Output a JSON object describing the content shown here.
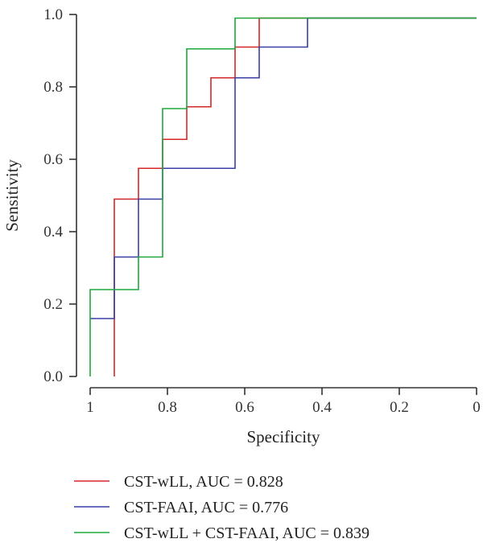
{
  "chart_data": {
    "type": "line",
    "xlabel": "Specificity",
    "ylabel": "Sensitivity",
    "x_reversed": true,
    "xlim": [
      1,
      0
    ],
    "ylim": [
      0,
      1
    ],
    "x_ticks": [
      1,
      0.8,
      0.6,
      0.4,
      0.2,
      0
    ],
    "x_tick_labels": [
      "1",
      "0.8",
      "0.6",
      "0.4",
      "0.2",
      "0"
    ],
    "y_ticks": [
      0,
      0.2,
      0.4,
      0.6,
      0.8,
      1
    ],
    "y_tick_labels": [
      "0.0",
      "0.2",
      "0.4",
      "0.6",
      "0.8",
      "1.0"
    ],
    "grid": false,
    "legend_position": "bottom",
    "series": [
      {
        "name": "CST-wLL, AUC = 0.828",
        "color": "#d62728",
        "points": [
          [
            0.9375,
            0.0
          ],
          [
            0.9375,
            0.49
          ],
          [
            0.875,
            0.49
          ],
          [
            0.875,
            0.575
          ],
          [
            0.8125,
            0.575
          ],
          [
            0.8125,
            0.655
          ],
          [
            0.75,
            0.655
          ],
          [
            0.75,
            0.745
          ],
          [
            0.6875,
            0.745
          ],
          [
            0.6875,
            0.825
          ],
          [
            0.625,
            0.825
          ],
          [
            0.625,
            0.91
          ],
          [
            0.5625,
            0.91
          ],
          [
            0.5625,
            0.99
          ],
          [
            0.0,
            0.99
          ]
        ]
      },
      {
        "name": "CST-FAAI, AUC = 0.776",
        "color": "#3a3fa3",
        "points": [
          [
            1.0,
            0.16
          ],
          [
            0.9375,
            0.16
          ],
          [
            0.9375,
            0.33
          ],
          [
            0.875,
            0.33
          ],
          [
            0.875,
            0.49
          ],
          [
            0.8125,
            0.49
          ],
          [
            0.8125,
            0.575
          ],
          [
            0.625,
            0.575
          ],
          [
            0.625,
            0.825
          ],
          [
            0.5625,
            0.825
          ],
          [
            0.5625,
            0.91
          ],
          [
            0.4375,
            0.91
          ],
          [
            0.4375,
            0.99
          ],
          [
            0.0,
            0.99
          ]
        ]
      },
      {
        "name": "CST-wLL + CST-FAAI, AUC = 0.839",
        "color": "#1fa83c",
        "points": [
          [
            1.0,
            0.0
          ],
          [
            1.0,
            0.24
          ],
          [
            0.875,
            0.24
          ],
          [
            0.875,
            0.33
          ],
          [
            0.8125,
            0.33
          ],
          [
            0.8125,
            0.74
          ],
          [
            0.75,
            0.74
          ],
          [
            0.75,
            0.905
          ],
          [
            0.625,
            0.905
          ],
          [
            0.625,
            0.99
          ],
          [
            0.0,
            0.99
          ]
        ]
      }
    ]
  }
}
